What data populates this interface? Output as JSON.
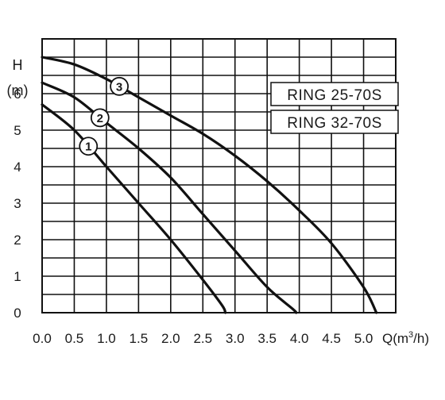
{
  "chart_data": {
    "type": "line",
    "ylabel": "H",
    "yunit": "(m)",
    "xlabel": "Q(m³/h)",
    "xlim": [
      0,
      5.5
    ],
    "ylim": [
      0,
      7.5
    ],
    "x_ticks": [
      "0.0",
      "0.5",
      "1.0",
      "1.5",
      "2.0",
      "2.5",
      "3.0",
      "3.5",
      "4.0",
      "4.5",
      "5.0"
    ],
    "y_ticks": [
      "0",
      "1",
      "2",
      "3",
      "4",
      "5",
      "6"
    ],
    "grid": true,
    "legend": [
      "RING 25-70S",
      "RING 32-70S"
    ],
    "legend_position": "top-right",
    "series": [
      {
        "name": "1",
        "x": [
          0.0,
          0.5,
          1.0,
          1.5,
          2.0,
          2.5,
          2.8,
          2.85
        ],
        "y": [
          5.7,
          5.0,
          4.0,
          3.0,
          2.0,
          0.9,
          0.2,
          0.0
        ]
      },
      {
        "name": "2",
        "x": [
          0.0,
          0.5,
          1.0,
          1.5,
          2.0,
          2.5,
          3.0,
          3.5,
          3.9,
          3.95
        ],
        "y": [
          6.3,
          5.9,
          5.2,
          4.5,
          3.7,
          2.7,
          1.7,
          0.7,
          0.1,
          0.0
        ]
      },
      {
        "name": "3",
        "x": [
          0.0,
          0.5,
          1.0,
          1.5,
          2.0,
          2.5,
          3.0,
          3.5,
          4.0,
          4.5,
          5.0,
          5.2
        ],
        "y": [
          7.0,
          6.8,
          6.4,
          5.9,
          5.4,
          4.9,
          4.3,
          3.6,
          2.8,
          1.9,
          0.7,
          0.0
        ]
      }
    ]
  }
}
